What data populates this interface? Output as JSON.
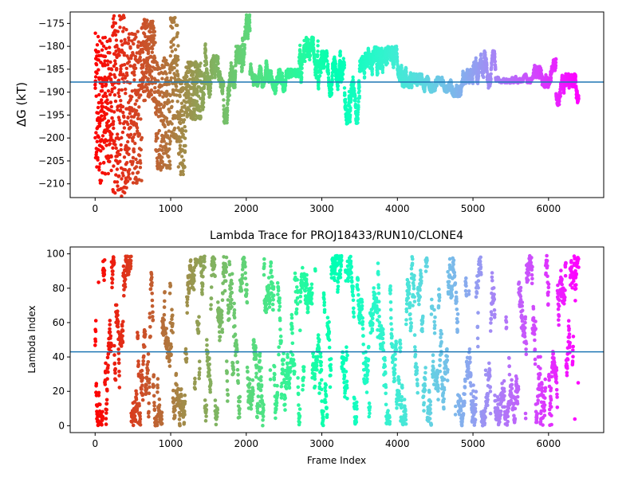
{
  "chart_data": [
    {
      "type": "scatter",
      "title": "",
      "xlabel": "",
      "ylabel": "ΔG (kT)",
      "xlim": [
        -330,
        6730
      ],
      "ylim": [
        -213,
        -172.5
      ],
      "xticks": [
        0,
        1000,
        2000,
        3000,
        4000,
        5000,
        6000
      ],
      "yticks": [
        -175,
        -180,
        -185,
        -190,
        -195,
        -200,
        -205,
        -210
      ],
      "hline": -187.8,
      "hline_color": "#1f77b4",
      "colormap": "rainbow",
      "grid": false,
      "segments": [
        {
          "x0": 0,
          "x1": 90,
          "ymin": -210,
          "ymax": -177
        },
        {
          "x0": 90,
          "x1": 220,
          "ymin": -208,
          "ymax": -178
        },
        {
          "x0": 220,
          "x1": 420,
          "ymin": -213,
          "ymax": -173
        },
        {
          "x0": 420,
          "x1": 620,
          "ymin": -210,
          "ymax": -176
        },
        {
          "x0": 620,
          "x1": 800,
          "ymin": -192,
          "ymax": -174
        },
        {
          "x0": 800,
          "x1": 1000,
          "ymin": -207,
          "ymax": -182
        },
        {
          "x0": 1000,
          "x1": 1100,
          "ymin": -201,
          "ymax": -173
        },
        {
          "x0": 1100,
          "x1": 1200,
          "ymin": -208,
          "ymax": -186
        },
        {
          "x0": 1200,
          "x1": 1400,
          "ymin": -196,
          "ymax": -183
        },
        {
          "x0": 1400,
          "x1": 1550,
          "ymin": -194,
          "ymax": -179
        },
        {
          "x0": 1550,
          "x1": 1700,
          "ymin": -191,
          "ymax": -182
        },
        {
          "x0": 1700,
          "x1": 1800,
          "ymin": -197,
          "ymax": -184
        },
        {
          "x0": 1800,
          "x1": 1950,
          "ymin": -189,
          "ymax": -178
        },
        {
          "x0": 1950,
          "x1": 2050,
          "ymin": -184,
          "ymax": -173
        },
        {
          "x0": 2050,
          "x1": 2300,
          "ymin": -189,
          "ymax": -183
        },
        {
          "x0": 2300,
          "x1": 2700,
          "ymin": -191,
          "ymax": -185
        },
        {
          "x0": 2700,
          "x1": 2950,
          "ymin": -189,
          "ymax": -178
        },
        {
          "x0": 2950,
          "x1": 3300,
          "ymin": -191,
          "ymax": -181
        },
        {
          "x0": 3300,
          "x1": 3500,
          "ymin": -197,
          "ymax": -184
        },
        {
          "x0": 3500,
          "x1": 3800,
          "ymin": -189,
          "ymax": -180
        },
        {
          "x0": 3800,
          "x1": 4200,
          "ymin": -189,
          "ymax": -180
        },
        {
          "x0": 4200,
          "x1": 4700,
          "ymin": -190,
          "ymax": -186
        },
        {
          "x0": 4700,
          "x1": 5000,
          "ymin": -191,
          "ymax": -185
        },
        {
          "x0": 5000,
          "x1": 5300,
          "ymin": -190,
          "ymax": -181
        },
        {
          "x0": 5300,
          "x1": 5800,
          "ymin": -188,
          "ymax": -186
        },
        {
          "x0": 5800,
          "x1": 6100,
          "ymin": -189,
          "ymax": -182
        },
        {
          "x0": 6100,
          "x1": 6400,
          "ymin": -193,
          "ymax": -186
        }
      ]
    },
    {
      "type": "scatter",
      "title": "Lambda Trace for PROJ18433/RUN10/CLONE4",
      "xlabel": "Frame Index",
      "ylabel": "Lambda Index",
      "xlim": [
        -330,
        6730
      ],
      "ylim": [
        -4,
        104
      ],
      "xticks": [
        0,
        1000,
        2000,
        3000,
        4000,
        5000,
        6000
      ],
      "yticks": [
        0,
        20,
        40,
        60,
        80,
        100
      ],
      "hline": 43,
      "hline_color": "#1f77b4",
      "colormap": "rainbow",
      "grid": false,
      "x_range": [
        0,
        6400
      ],
      "y_range": [
        0,
        99
      ]
    }
  ]
}
